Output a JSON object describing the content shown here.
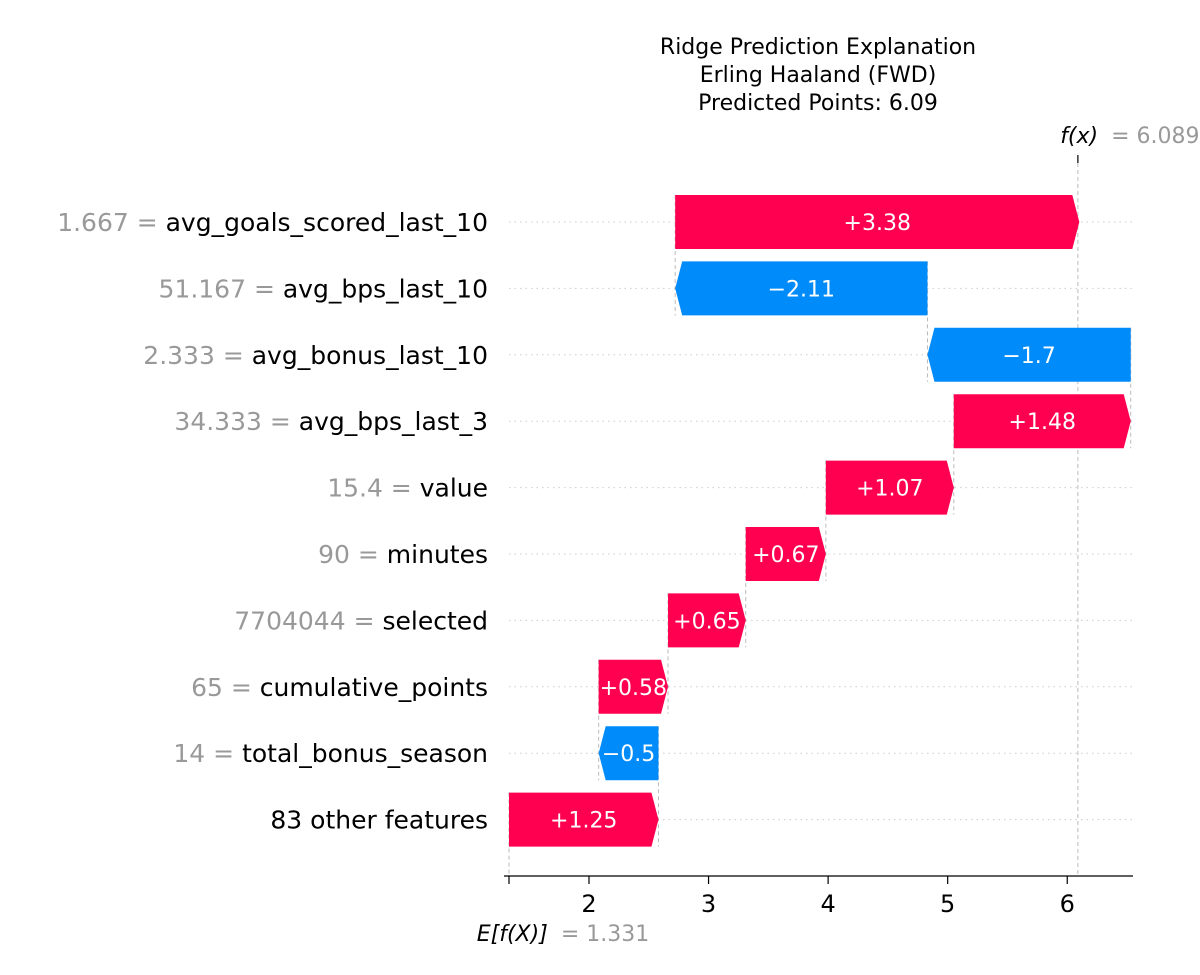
{
  "chart_data": {
    "type": "waterfall",
    "title": [
      "Ridge Prediction Explanation",
      "Erling Haaland (FWD)",
      "Predicted Points: 6.09"
    ],
    "base_value": 1.331,
    "base_label": "E[f(X)]",
    "base_value_text": "= 1.331",
    "final_value": 6.089,
    "final_label": "f(x)",
    "final_value_text": "= 6.089",
    "xlim": [
      1.331,
      6.55
    ],
    "xticks": [
      2,
      3,
      4,
      5,
      6
    ],
    "xtick_labels": [
      "2",
      "3",
      "4",
      "5",
      "6"
    ],
    "features": [
      {
        "name": "avg_goals_scored_last_10",
        "value": "1.667",
        "contribution": 3.38,
        "label": "+3.38"
      },
      {
        "name": "avg_bps_last_10",
        "value": "51.167",
        "contribution": -2.11,
        "label": "−2.11"
      },
      {
        "name": "avg_bonus_last_10",
        "value": "2.333",
        "contribution": -1.7,
        "label": "−1.7"
      },
      {
        "name": "avg_bps_last_3",
        "value": "34.333",
        "contribution": 1.48,
        "label": "+1.48"
      },
      {
        "name": "value",
        "value": "15.4",
        "contribution": 1.07,
        "label": "+1.07"
      },
      {
        "name": "minutes",
        "value": "90",
        "contribution": 0.67,
        "label": "+0.67"
      },
      {
        "name": "selected",
        "value": "7704044",
        "contribution": 0.65,
        "label": "+0.65"
      },
      {
        "name": "cumulative_points",
        "value": "65",
        "contribution": 0.58,
        "label": "+0.58"
      },
      {
        "name": "total_bonus_season",
        "value": "14",
        "contribution": -0.5,
        "label": "−0.5"
      },
      {
        "name": "83 other features",
        "value": "",
        "contribution": 1.25,
        "label": "+1.25"
      }
    ],
    "colors": {
      "positive": "#ff0051",
      "negative": "#008bfb"
    }
  }
}
